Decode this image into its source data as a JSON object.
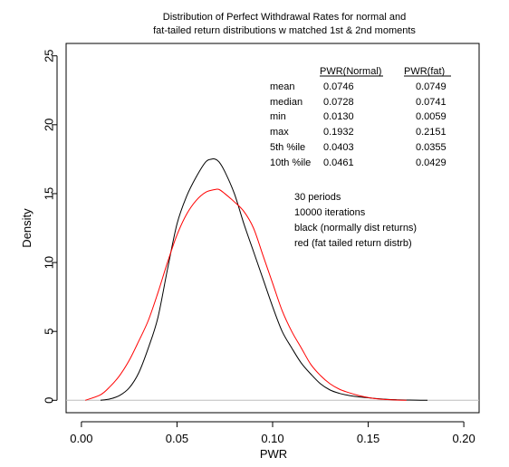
{
  "chart_data": {
    "type": "line",
    "title": [
      "Distribution of Perfect Withdrawal Rates for normal and",
      "fat-tailed return distributions w matched 1st & 2nd moments"
    ],
    "xlabel": "PWR",
    "ylabel": "Density",
    "xlim": [
      -0.008,
      0.208
    ],
    "ylim": [
      -0.9,
      25.9
    ],
    "xticks": [
      0.0,
      0.05,
      0.1,
      0.15,
      0.2
    ],
    "xtick_labels": [
      "0.00",
      "0.05",
      "0.10",
      "0.15",
      "0.20"
    ],
    "yticks": [
      0,
      5,
      10,
      15,
      20,
      25
    ],
    "ytick_labels": [
      "0",
      "5",
      "10",
      "15",
      "20",
      "25"
    ],
    "baseline_y": 0,
    "series": [
      {
        "color": "#000000",
        "x": [
          0.01,
          0.015,
          0.02,
          0.025,
          0.03,
          0.035,
          0.04,
          0.045,
          0.05,
          0.055,
          0.06,
          0.065,
          0.068,
          0.07,
          0.072,
          0.075,
          0.08,
          0.085,
          0.09,
          0.095,
          0.1,
          0.105,
          0.11,
          0.115,
          0.12,
          0.125,
          0.13,
          0.135,
          0.14,
          0.145,
          0.15,
          0.155,
          0.16,
          0.165,
          0.17,
          0.175,
          0.181
        ],
        "y": [
          0.0,
          0.1,
          0.35,
          0.9,
          2.0,
          3.8,
          6.0,
          9.5,
          12.8,
          14.8,
          16.2,
          17.3,
          17.5,
          17.5,
          17.3,
          16.6,
          15.0,
          12.8,
          10.8,
          8.8,
          6.8,
          5.0,
          3.8,
          2.7,
          1.9,
          1.2,
          0.75,
          0.5,
          0.35,
          0.25,
          0.18,
          0.12,
          0.07,
          0.04,
          0.02,
          0.01,
          0.0
        ]
      },
      {
        "color": "#ff0000",
        "x": [
          0.002,
          0.01,
          0.015,
          0.02,
          0.025,
          0.03,
          0.035,
          0.04,
          0.045,
          0.05,
          0.055,
          0.06,
          0.065,
          0.07,
          0.072,
          0.075,
          0.08,
          0.085,
          0.09,
          0.095,
          0.1,
          0.105,
          0.11,
          0.115,
          0.12,
          0.125,
          0.13,
          0.135,
          0.14,
          0.145,
          0.15,
          0.155,
          0.16,
          0.165,
          0.17
        ],
        "y": [
          0.0,
          0.4,
          1.0,
          1.8,
          2.9,
          4.3,
          5.8,
          7.8,
          10.0,
          12.0,
          13.5,
          14.5,
          15.1,
          15.3,
          15.3,
          15.0,
          14.4,
          13.7,
          12.5,
          10.5,
          8.5,
          6.5,
          5.0,
          3.8,
          2.6,
          1.8,
          1.2,
          0.8,
          0.55,
          0.35,
          0.2,
          0.1,
          0.05,
          0.02,
          0.0
        ]
      }
    ],
    "stats_table": {
      "headers": [
        "PWR(Normal)",
        "PWR(fat)"
      ],
      "rows": [
        {
          "label": "mean",
          "normal": "0.0746",
          "fat": "0.0749"
        },
        {
          "label": "median",
          "normal": "0.0728",
          "fat": "0.0741"
        },
        {
          "label": "min",
          "normal": "0.0130",
          "fat": "0.0059"
        },
        {
          "label": "max",
          "normal": "0.1932",
          "fat": "0.2151"
        },
        {
          "label": "5th %ile",
          "normal": "0.0403",
          "fat": "0.0355"
        },
        {
          "label": "10th %ile",
          "normal": "0.0461",
          "fat": "0.0429"
        }
      ]
    },
    "annotations": [
      "30 periods",
      "10000 iterations",
      "black (normally dist returns)",
      "red (fat tailed return distrb)"
    ]
  }
}
